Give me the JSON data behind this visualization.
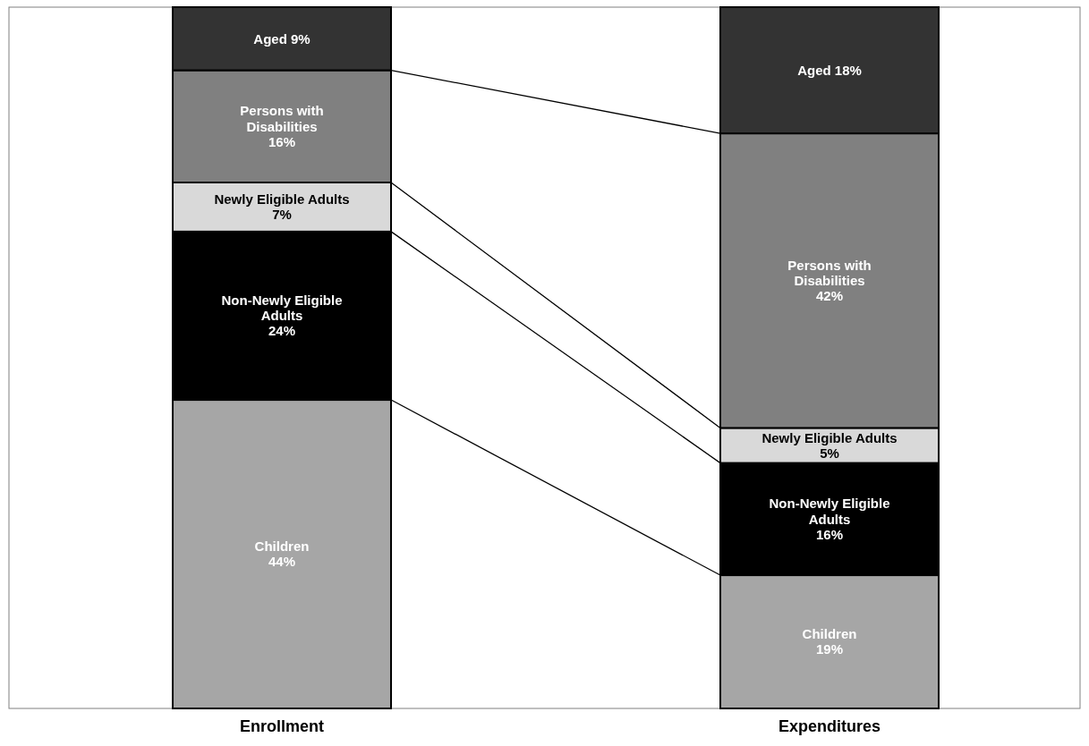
{
  "chart_data": {
    "type": "bar",
    "stacked": true,
    "categories": [
      "Enrollment",
      "Expenditures"
    ],
    "series": [
      {
        "name": "Children",
        "color": "#a6a6a6",
        "values": [
          44,
          19
        ],
        "value_labels": [
          "44%",
          "19%"
        ]
      },
      {
        "name": "Non-Newly Eligible Adults",
        "color": "#000000",
        "values": [
          24,
          16
        ],
        "value_labels": [
          "24%",
          "16%"
        ]
      },
      {
        "name": "Newly Eligible Adults",
        "color": "#d9d9d9",
        "values": [
          7,
          5
        ],
        "value_labels": [
          "7%",
          "5%"
        ]
      },
      {
        "name": "Persons with Disabilities",
        "color": "#808080",
        "values": [
          16,
          42
        ],
        "value_labels": [
          "16%",
          "42%"
        ]
      },
      {
        "name": "Aged",
        "color": "#333333",
        "values": [
          9,
          18
        ],
        "value_labels": [
          "9%",
          "18%"
        ]
      }
    ]
  }
}
